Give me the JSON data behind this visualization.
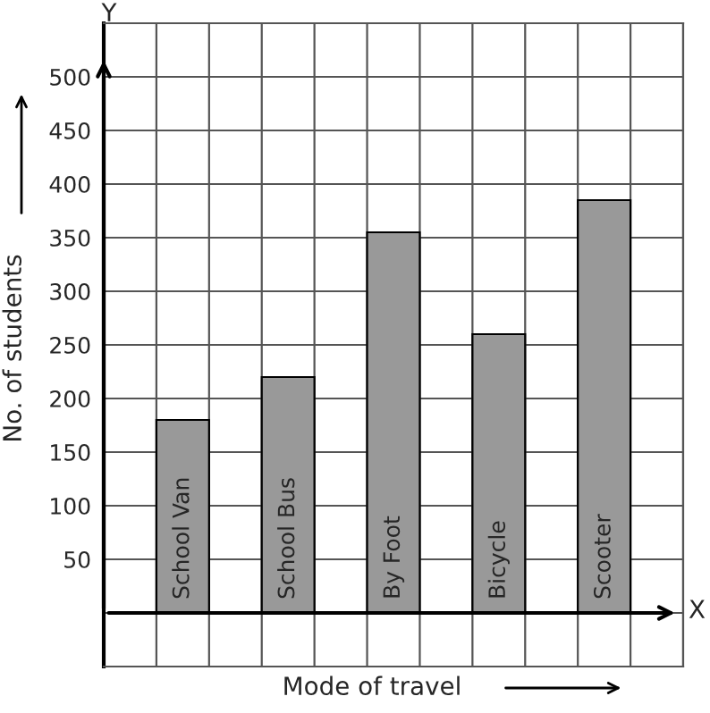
{
  "chart_data": {
    "type": "bar",
    "xlabel": "Mode of travel",
    "ylabel": "No. of students",
    "categories": [
      "School Van",
      "School Bus",
      "By Foot",
      "Bicycle",
      "Scooter"
    ],
    "values": [
      180,
      220,
      355,
      260,
      385
    ],
    "color": "#999999",
    "ylim": [
      -50,
      550
    ],
    "yticks": [
      50,
      100,
      150,
      200,
      250,
      300,
      350,
      400,
      450,
      500
    ],
    "annotations": [
      "X",
      "Y"
    ],
    "grid": true
  }
}
